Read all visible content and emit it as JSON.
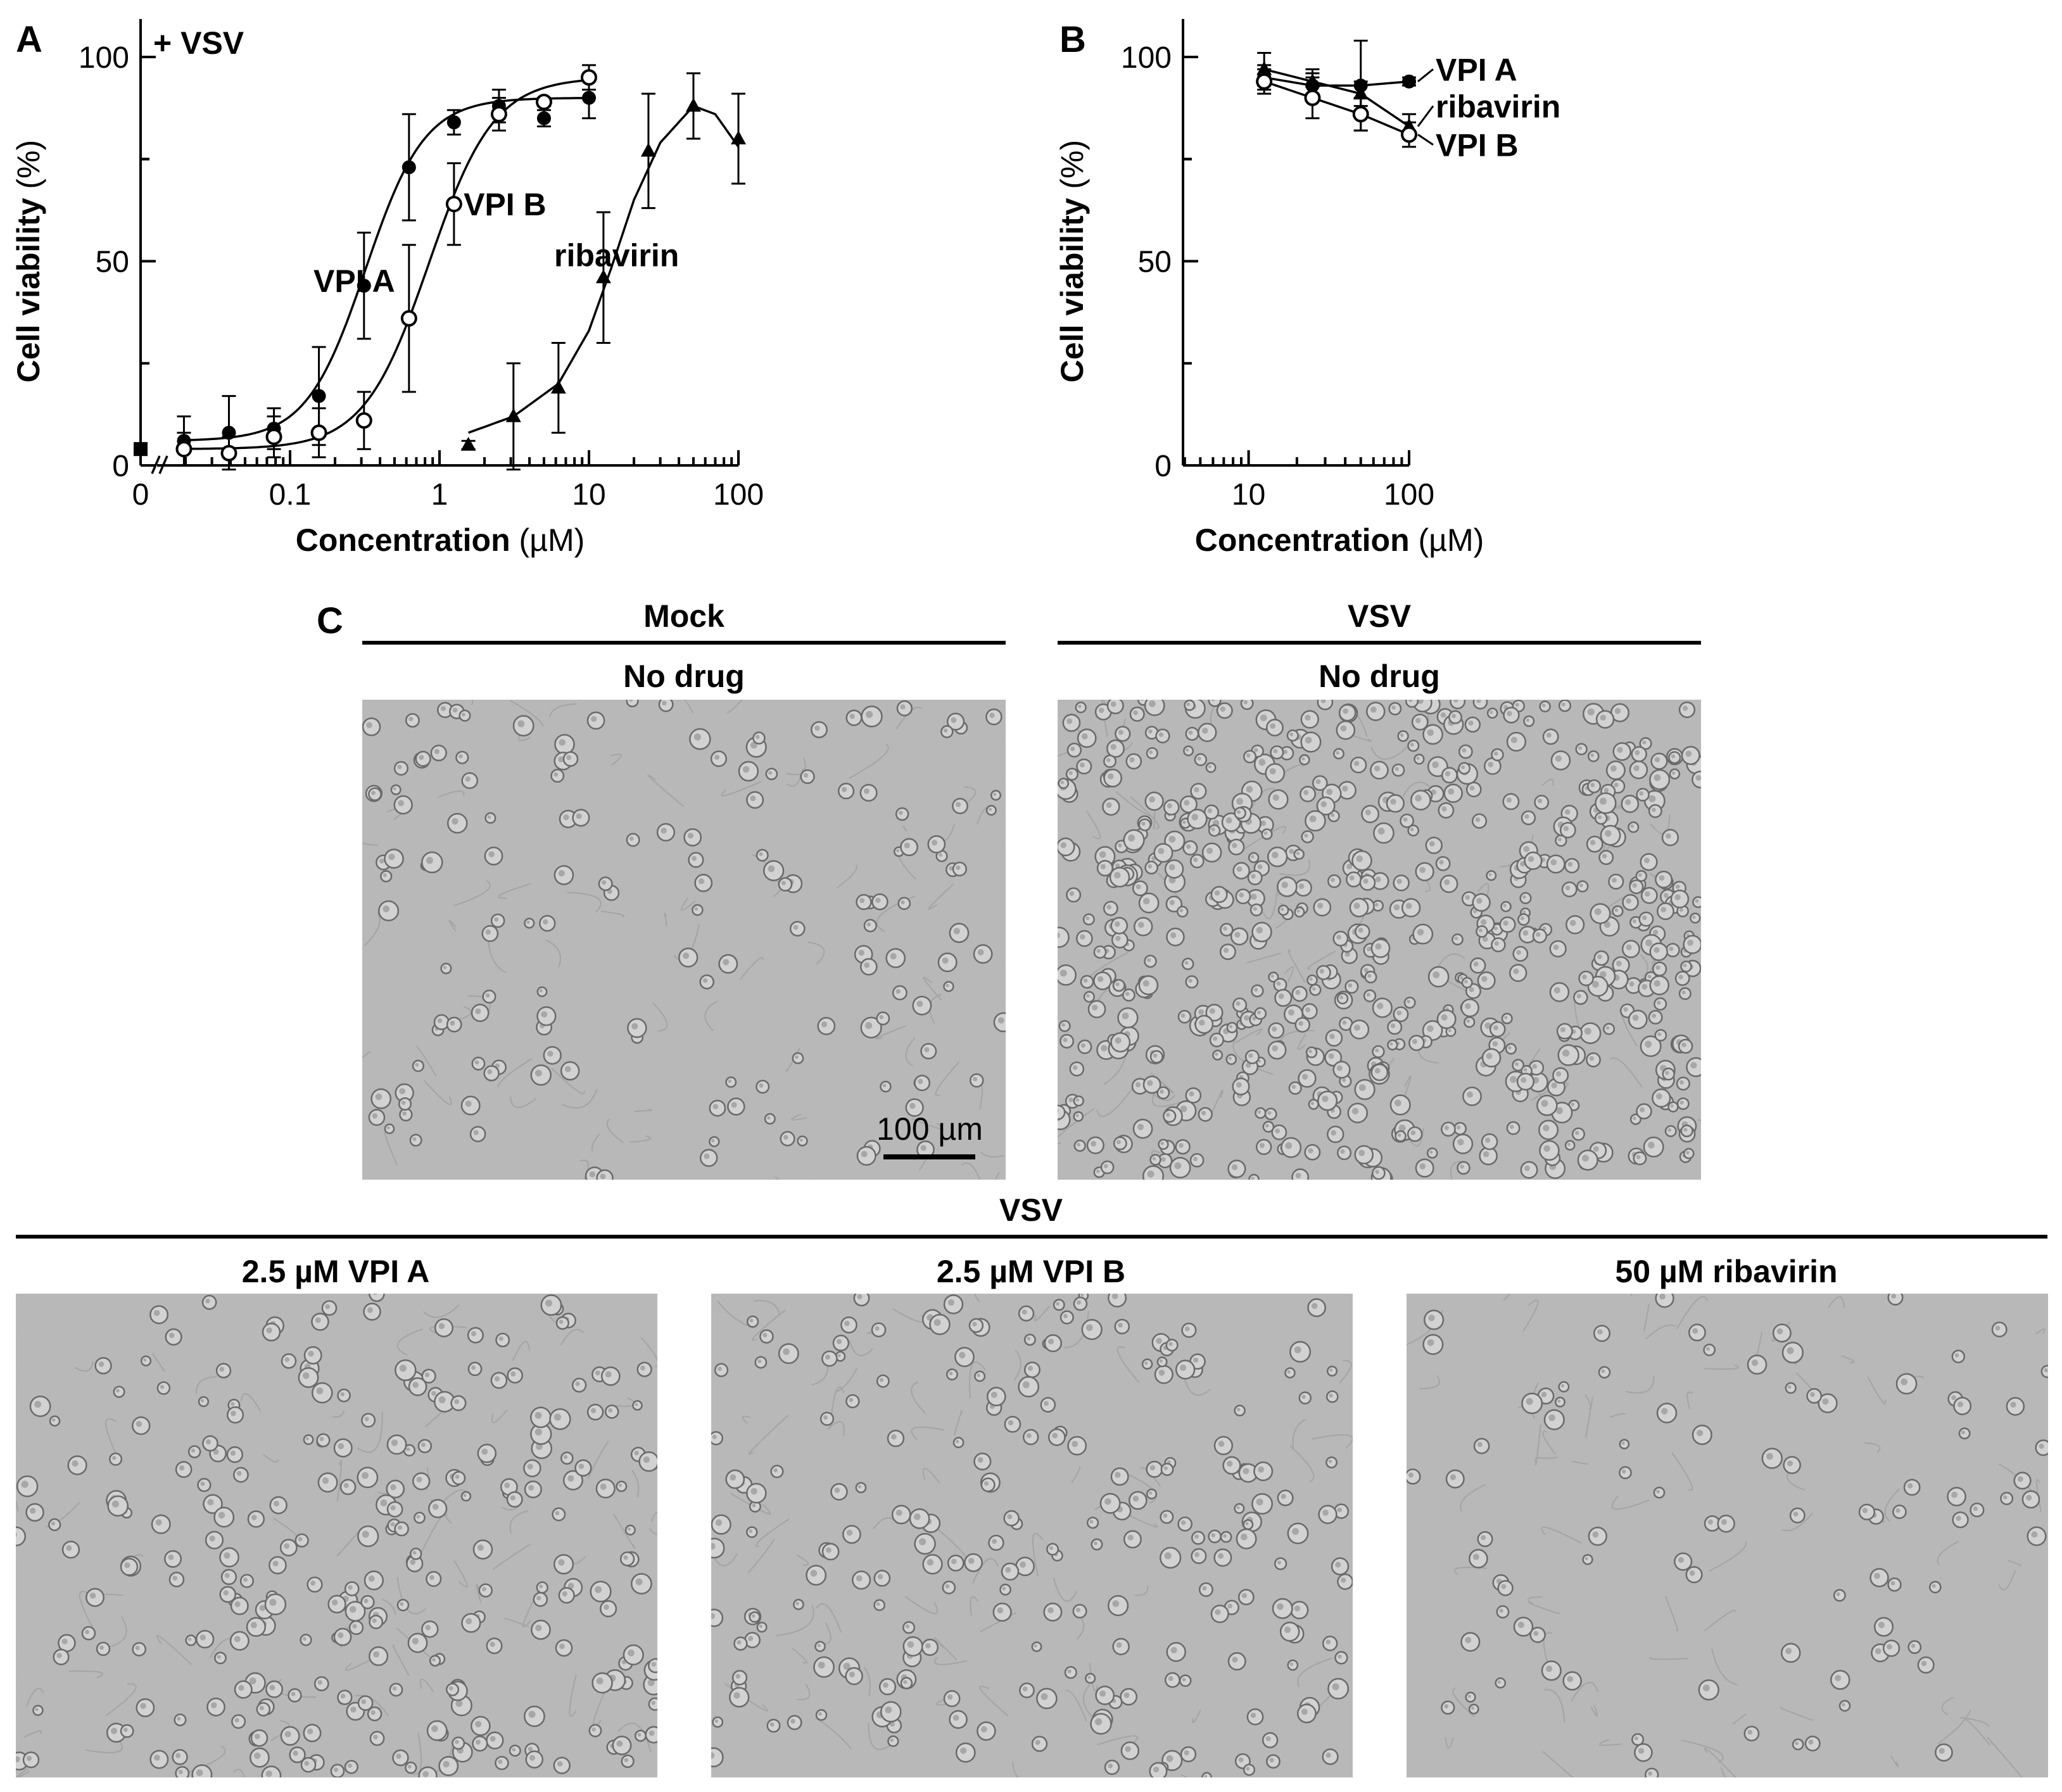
{
  "panels": {
    "a": {
      "letter": "A",
      "condition": "+ VSV"
    },
    "b": {
      "letter": "B"
    },
    "c": {
      "letter": "C",
      "top_groups": [
        {
          "header": "Mock",
          "sub": "No drug"
        },
        {
          "header": "VSV",
          "sub": "No drug"
        }
      ],
      "bottom_header": "VSV",
      "bottom_labels": [
        "2.5 µM VPI A",
        "2.5 µM VPI B",
        "50 µM ribavirin"
      ],
      "scale_bar": "100 µm"
    }
  },
  "colors": {
    "line": "#000000",
    "micrograph_bg": "#b9b9b9",
    "cell_edge": "#6a6a6a"
  },
  "chart_data": [
    {
      "type": "line",
      "panel": "A",
      "xlabel_bold": "Concentration",
      "xlabel_unit": " (µM)",
      "ylabel_bold": "Cell viability",
      "ylabel_unit": " (%)",
      "xscale": "log",
      "xlim": [
        0.01,
        100
      ],
      "ylim": [
        0,
        100
      ],
      "x_break_tick": "0",
      "xticks": [
        {
          "v": 0.1,
          "label": "0.1"
        },
        {
          "v": 1,
          "label": "1"
        },
        {
          "v": 10,
          "label": "10"
        },
        {
          "v": 100,
          "label": "100"
        }
      ],
      "yticks": [
        {
          "v": 0,
          "label": "0"
        },
        {
          "v": 50,
          "label": "50"
        },
        {
          "v": 100,
          "label": "100"
        }
      ],
      "zero_point": {
        "y": 4,
        "marker": "square"
      },
      "series": [
        {
          "name": "VPI A",
          "marker": "filled-circle",
          "x": [
            0.0195,
            0.039,
            0.078,
            0.156,
            0.3125,
            0.625,
            1.25,
            2.5,
            5,
            10
          ],
          "y": [
            6,
            8,
            9,
            17,
            44,
            73,
            84,
            88,
            85,
            90
          ],
          "err": [
            6,
            9,
            5,
            12,
            13,
            13,
            3,
            4,
            2,
            5
          ],
          "fit": {
            "bottom": 6,
            "top": 90,
            "ec50": 0.32,
            "hill": 2.2,
            "xmin": 0.0195,
            "xmax": 10
          }
        },
        {
          "name": "VPI B",
          "marker": "open-circle",
          "x": [
            0.0195,
            0.039,
            0.078,
            0.156,
            0.3125,
            0.625,
            1.25,
            2.5,
            5,
            10
          ],
          "y": [
            4,
            3,
            7,
            8,
            11,
            36,
            64,
            86,
            89,
            95
          ],
          "err": [
            4,
            4,
            5,
            6,
            7,
            18,
            10,
            4,
            1,
            3
          ],
          "fit": {
            "bottom": 4,
            "top": 95,
            "ec50": 0.85,
            "hill": 2.0,
            "xmin": 0.0195,
            "xmax": 10
          }
        },
        {
          "name": "ribavirin",
          "marker": "filled-triangle",
          "x": [
            1.56,
            3.125,
            6.25,
            12.5,
            25,
            50,
            100
          ],
          "y": [
            5,
            12,
            19,
            46,
            77,
            88,
            80
          ],
          "err": [
            1,
            13,
            11,
            16,
            14,
            8,
            11
          ],
          "fit": {
            "points": [
              [
                1.56,
                8
              ],
              [
                3.125,
                12
              ],
              [
                6.25,
                20
              ],
              [
                10,
                33
              ],
              [
                14,
                48
              ],
              [
                20,
                65
              ],
              [
                30,
                79
              ],
              [
                50,
                88
              ],
              [
                70,
                86
              ],
              [
                100,
                78
              ]
            ]
          }
        }
      ],
      "labels": [
        {
          "text": "VPI A",
          "x": 0.19,
          "y": 44
        },
        {
          "text": "VPI B",
          "x": 1.45,
          "y": 64
        },
        {
          "text": "ribavirin",
          "x": 10.5,
          "y": 50
        }
      ]
    },
    {
      "type": "line",
      "panel": "B",
      "xlabel_bold": "Concentration",
      "xlabel_unit": " (µM)",
      "ylabel_bold": "Cell viability",
      "ylabel_unit": " (%)",
      "xscale": "log",
      "xlim": [
        3.9,
        100
      ],
      "ylim": [
        0,
        100
      ],
      "xticks": [
        {
          "v": 10,
          "label": "10"
        },
        {
          "v": 100,
          "label": "100"
        }
      ],
      "yticks": [
        {
          "v": 0,
          "label": "0"
        },
        {
          "v": 50,
          "label": "50"
        },
        {
          "v": 100,
          "label": "100"
        }
      ],
      "series": [
        {
          "name": "VPI A",
          "marker": "filled-circle",
          "x": [
            12.5,
            25,
            50,
            100
          ],
          "y": [
            95,
            93,
            93,
            94
          ],
          "err": [
            3,
            3,
            11,
            1
          ]
        },
        {
          "name": "ribavirin",
          "marker": "filled-triangle",
          "x": [
            12.5,
            25,
            50,
            100
          ],
          "y": [
            97,
            94,
            91,
            83
          ],
          "err": [
            4,
            3,
            3,
            3
          ]
        },
        {
          "name": "VPI B",
          "marker": "open-circle",
          "x": [
            12.5,
            25,
            50,
            100
          ],
          "y": [
            94,
            90,
            86,
            81
          ],
          "err": [
            3,
            5,
            4,
            3
          ]
        }
      ],
      "labels": [
        {
          "text": "VPI A",
          "y": 97
        },
        {
          "text": "ribavirin",
          "y": 88
        },
        {
          "text": "VPI B",
          "y": 78.5
        }
      ]
    }
  ]
}
